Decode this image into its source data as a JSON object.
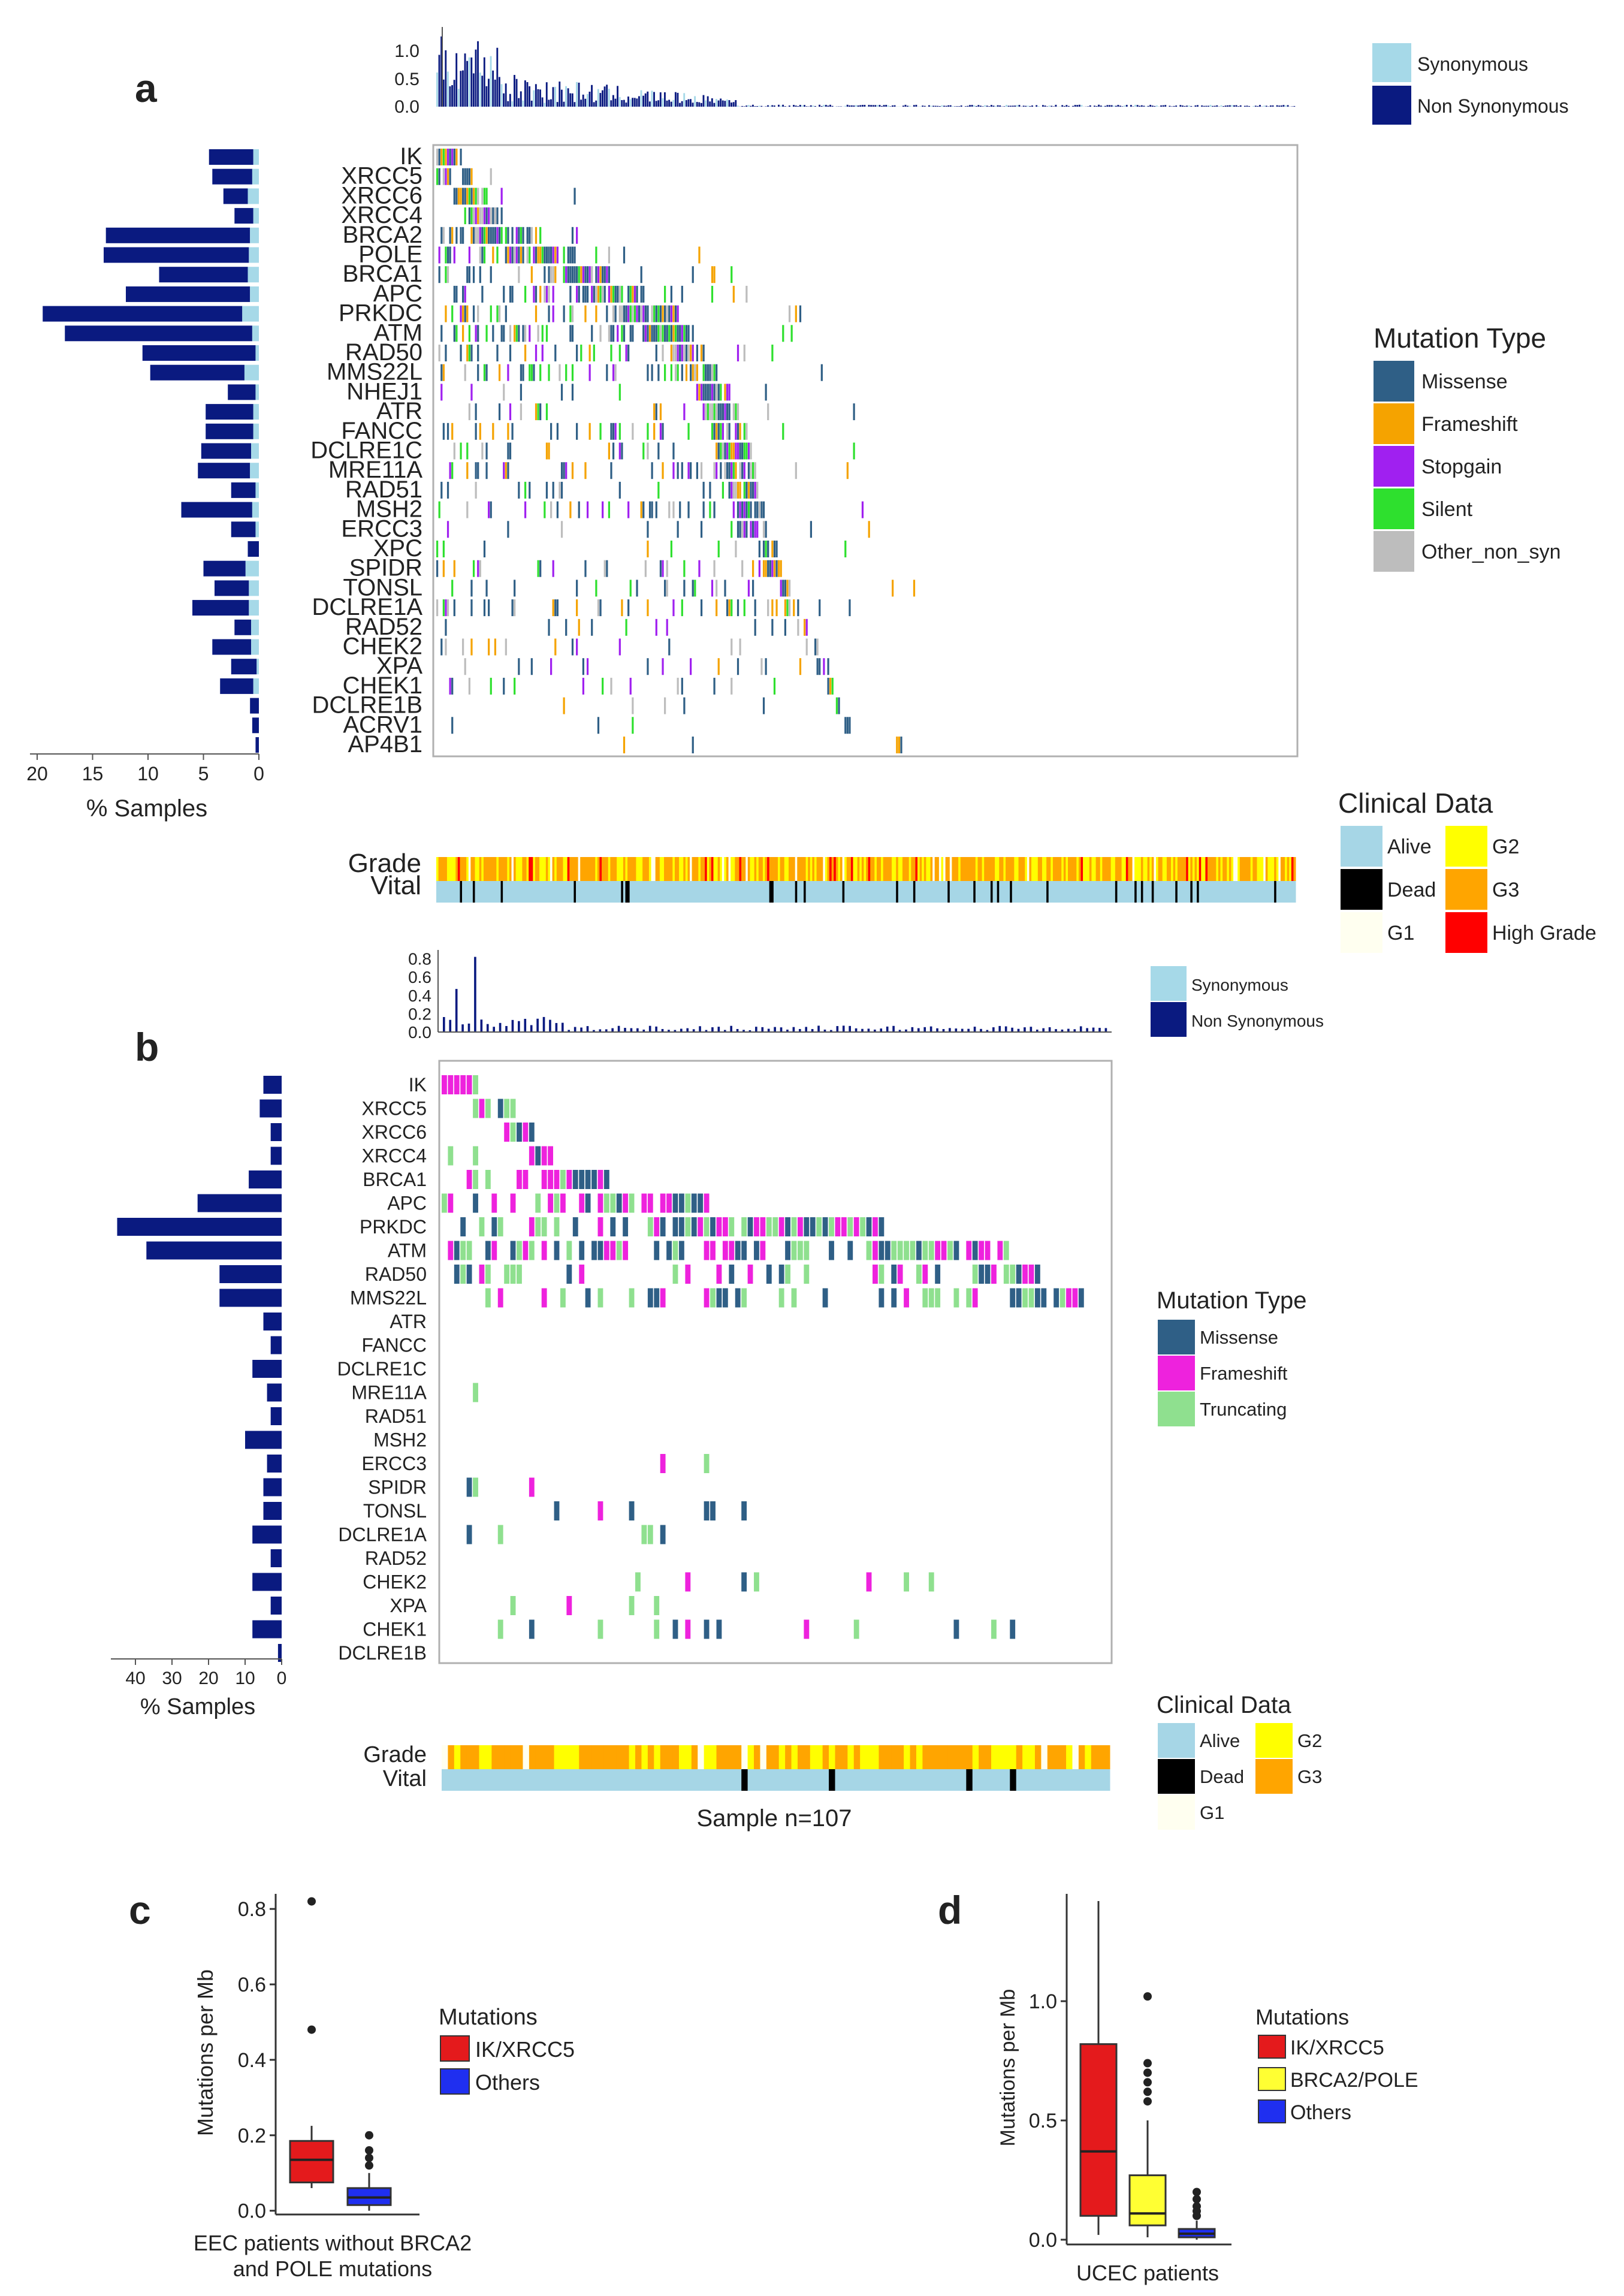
{
  "figure": {
    "panels": [
      "a",
      "b",
      "c",
      "d"
    ]
  },
  "colors": {
    "missense": "#2f5f86",
    "frameshift_a": "#f5a300",
    "stopgain": "#a020f0",
    "silent": "#2ee02e",
    "other_non_syn": "#bdbdbd",
    "frameshift_b": "#ee22dd",
    "truncating": "#8fe08f",
    "synonymous": "#a6d9e8",
    "non_synonymous": "#0a1a80",
    "alive": "#a6d6e6",
    "dead": "#000000",
    "g1": "#fffff0",
    "g2": "#ffff00",
    "g3": "#ffa500",
    "high_grade": "#ff0000"
  },
  "chart_data": [
    {
      "panel": "a",
      "type": "heatmap",
      "title": "",
      "genes": [
        "IK",
        "XRCC5",
        "XRCC6",
        "XRCC4",
        "BRCA2",
        "POLE",
        "BRCA1",
        "APC",
        "PRKDC",
        "ATM",
        "RAD50",
        "MMS22L",
        "NHEJ1",
        "ATR",
        "FANCC",
        "DCLRE1C",
        "MRE11A",
        "RAD51",
        "MSH2",
        "ERCC3",
        "XPC",
        "SPIDR",
        "TONSL",
        "DCLRE1A",
        "RAD52",
        "CHEK2",
        "XPA",
        "CHEK1",
        "DCLRE1B",
        "ACRV1",
        "AP4B1"
      ],
      "pct_samples": [
        4.5,
        4.2,
        3.2,
        2.2,
        13.8,
        14.0,
        9.0,
        12.0,
        19.5,
        17.5,
        10.5,
        9.8,
        2.8,
        4.8,
        4.8,
        5.2,
        5.5,
        2.5,
        7.0,
        2.5,
        1.0,
        5.0,
        4.0,
        6.0,
        2.2,
        4.2,
        2.5,
        3.5,
        0.8,
        0.6,
        0.3
      ],
      "pct_synonymous": [
        0.5,
        0.6,
        1.0,
        0.5,
        0.8,
        0.9,
        1.0,
        0.8,
        1.5,
        0.6,
        0.3,
        1.3,
        0.3,
        0.5,
        0.5,
        0.7,
        0.8,
        0.3,
        0.6,
        0.3,
        0.0,
        1.2,
        0.9,
        0.9,
        0.7,
        0.7,
        0.2,
        0.5,
        0.0,
        0.0,
        0.0
      ],
      "xlabel": "% Samples",
      "x_ticks": [
        20,
        15,
        10,
        5,
        0
      ],
      "tmb_y_ticks": [
        "1.0",
        "0.5",
        "0.0"
      ],
      "tmb_range": [
        0,
        1.2
      ],
      "n_samples": 400,
      "legend_variant": {
        "entries": [
          "Synonymous",
          "Non Synonymous"
        ]
      },
      "legend_mutation": {
        "title": "Mutation Type",
        "entries": [
          "Missense",
          "Frameshift",
          "Stopgain",
          "Silent",
          "Other_non_syn"
        ]
      },
      "clinical_rows": [
        "Grade",
        "Vital"
      ],
      "legend_clinical": {
        "title": "Clinical Data",
        "entries": [
          "Alive",
          "Dead",
          "G1",
          "G2",
          "G3",
          "High Grade"
        ]
      }
    },
    {
      "panel": "b",
      "type": "heatmap",
      "genes": [
        "IK",
        "XRCC5",
        "XRCC6",
        "XRCC4",
        "BRCA1",
        "APC",
        "PRKDC",
        "ATM",
        "RAD50",
        "MMS22L",
        "ATR",
        "FANCC",
        "DCLRE1C",
        "MRE11A",
        "RAD51",
        "MSH2",
        "ERCC3",
        "SPIDR",
        "TONSL",
        "DCLRE1A",
        "RAD52",
        "CHEK2",
        "XPA",
        "CHEK1",
        "DCLRE1B"
      ],
      "pct_samples": [
        5,
        6,
        3,
        3,
        9,
        23,
        45,
        37,
        17,
        17,
        5,
        3,
        8,
        4,
        3,
        10,
        4,
        5,
        5,
        8,
        3,
        8,
        3,
        8,
        1
      ],
      "xlabel": "% Samples",
      "x_ticks": [
        40,
        30,
        20,
        10,
        0
      ],
      "tmb_y_ticks": [
        "0.8",
        "0.6",
        "0.4",
        "0.2",
        "0.0"
      ],
      "tmb_range": [
        0,
        0.85
      ],
      "n_samples": 107,
      "legend_variant": {
        "entries": [
          "Synonymous",
          "Non Synonymous"
        ]
      },
      "legend_mutation": {
        "title": "Mutation Type",
        "entries": [
          "Missense",
          "Frameshift",
          "Truncating"
        ]
      },
      "clinical_rows": [
        "Grade",
        "Vital"
      ],
      "legend_clinical": {
        "title": "Clinical Data",
        "entries": [
          "Alive",
          "Dead",
          "G1",
          "G2",
          "G3"
        ]
      },
      "sample_label": "Sample n=107"
    },
    {
      "panel": "c",
      "type": "box",
      "ylabel": "Mutations per Mb",
      "xlabel_lines": [
        "EEC patients without BRCA2",
        "and POLE mutations"
      ],
      "y_ticks": [
        "0.0",
        "0.2",
        "0.4",
        "0.6",
        "0.8"
      ],
      "ylim": [
        -0.01,
        0.84
      ],
      "legend_title": "Mutations",
      "groups": [
        {
          "name": "IK/XRCC5",
          "color": "#e41a1c",
          "q1": 0.075,
          "median": 0.135,
          "q3": 0.185,
          "wlow": 0.06,
          "whigh": 0.225,
          "outliers": [
            0.48,
            0.82
          ]
        },
        {
          "name": "Others",
          "color": "#1f2ff0",
          "q1": 0.015,
          "median": 0.035,
          "q3": 0.06,
          "wlow": 0.0,
          "whigh": 0.1,
          "outliers": [
            0.12,
            0.14,
            0.16,
            0.2
          ]
        }
      ]
    },
    {
      "panel": "d",
      "type": "box",
      "ylabel": "Mutations per Mb",
      "xlabel_lines": [
        "UCEC patients"
      ],
      "y_ticks": [
        "0.0",
        "0.5",
        "1.0"
      ],
      "ylim": [
        -0.02,
        1.45
      ],
      "legend_title": "Mutations",
      "groups": [
        {
          "name": "IK/XRCC5",
          "color": "#e41a1c",
          "q1": 0.1,
          "median": 0.37,
          "q3": 0.82,
          "wlow": 0.02,
          "whigh": 1.42,
          "outliers": []
        },
        {
          "name": "BRCA2/POLE",
          "color": "#ffff33",
          "q1": 0.06,
          "median": 0.11,
          "q3": 0.27,
          "wlow": 0.01,
          "whigh": 0.5,
          "outliers": [
            0.58,
            0.62,
            0.66,
            0.7,
            0.74,
            1.02
          ]
        },
        {
          "name": "Others",
          "color": "#1f2ff0",
          "q1": 0.01,
          "median": 0.025,
          "q3": 0.045,
          "wlow": 0.0,
          "whigh": 0.08,
          "outliers": [
            0.1,
            0.12,
            0.14,
            0.17,
            0.2
          ]
        }
      ]
    }
  ]
}
